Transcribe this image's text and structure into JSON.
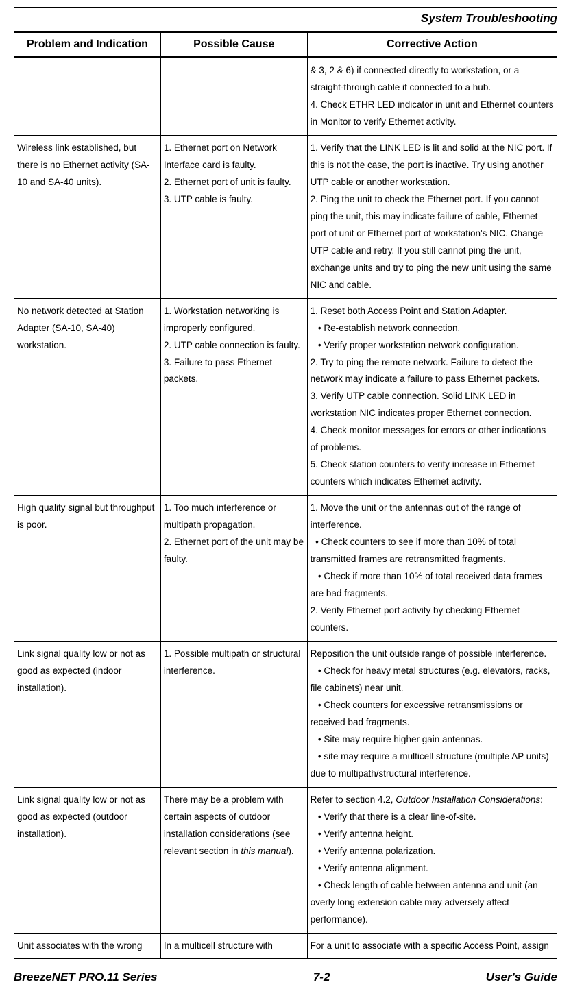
{
  "header": {
    "title_right": "System Troubleshooting"
  },
  "table": {
    "headers": [
      "Problem and Indication",
      "Possible Cause",
      "Corrective Action"
    ],
    "rows": [
      {
        "problem": "",
        "cause": "",
        "action": "& 3, 2 & 6) if connected directly to workstation, or a straight-through cable if connected to a hub.\n4. Check ETHR LED indicator in unit and Ethernet counters in Monitor to verify Ethernet activity."
      },
      {
        "problem": "Wireless link established, but there is no Ethernet activity (SA-10 and SA-40 units).",
        "cause": "1. Ethernet port on Network Interface card is faulty.\n2. Ethernet port of unit is faulty.\n3. UTP cable is faulty.",
        "action": "1. Verify that the LINK LED is lit and solid at the NIC port. If this is not the case, the port is inactive. Try using another UTP cable or another workstation.\n2. Ping the unit to check the Ethernet port. If you cannot ping the unit, this may indicate failure of cable, Ethernet port of unit or Ethernet port of workstation's NIC. Change UTP cable and retry. If you still cannot ping the unit, exchange units and try to ping the new unit using the same NIC and cable."
      },
      {
        "problem": "No network detected at Station Adapter (SA-10, SA-40) workstation.",
        "cause": "1. Workstation networking is improperly configured.\n2. UTP cable connection is faulty.\n3. Failure to pass Ethernet packets.",
        "action": "1. Reset both Access Point and Station Adapter.\n   •  Re-establish network connection.\n   •  Verify proper workstation network configuration.\n2. Try to ping the remote network. Failure to detect the network may indicate a failure to pass Ethernet packets.\n3. Verify UTP cable connection. Solid LINK LED in workstation NIC indicates proper Ethernet connection.\n4. Check monitor messages for errors or other indications of problems.\n5. Check station counters to verify increase in Ethernet counters which indicates Ethernet activity."
      },
      {
        "problem": "High quality signal but throughput is poor.",
        "cause": "1. Too much interference or multipath propagation.\n2. Ethernet port of the unit may be faulty.",
        "action": "1. Move the unit or the antennas out of the range of interference.\n  •  Check counters to see if more than 10% of total transmitted frames are retransmitted fragments.\n   •  Check if more than 10% of total received data frames are bad fragments.\n2. Verify Ethernet port activity by checking Ethernet counters."
      },
      {
        "problem": "Link signal quality low or not as good as expected (indoor installation).",
        "cause": "1. Possible multipath or structural interference.",
        "action": "Reposition the unit outside range of possible interference.\n   •  Check for heavy metal structures (e.g. elevators, racks, file cabinets) near unit.\n   •  Check counters for excessive retransmissions or received bad fragments.\n   •  Site may require higher gain antennas.\n   • site may require a multicell structure (multiple AP units) due to multipath/structural interference."
      },
      {
        "problem": "Link signal quality low or not as good as expected (outdoor installation).",
        "cause_html": "There may be a problem with certain aspects of outdoor installation considerations (see relevant section in <span class=\"italic\">this manual</span>).",
        "action_html": "Refer to section 4.2, <span class=\"italic\">Outdoor Installation Considerations</span>:\n   •  Verify that there is a clear line-of-site.\n   •  Verify antenna height.\n   •  Verify antenna polarization.\n   •  Verify antenna alignment.\n   •  Check length of cable between antenna and unit (an overly long extension cable may adversely affect performance)."
      },
      {
        "problem": "Unit associates with the wrong",
        "cause": "In a multicell structure with",
        "action": "For a unit to associate with a specific Access Point, assign"
      }
    ]
  },
  "footer": {
    "left": "BreezeNET PRO.11 Series",
    "center": "7-2",
    "right": "User's Guide"
  }
}
